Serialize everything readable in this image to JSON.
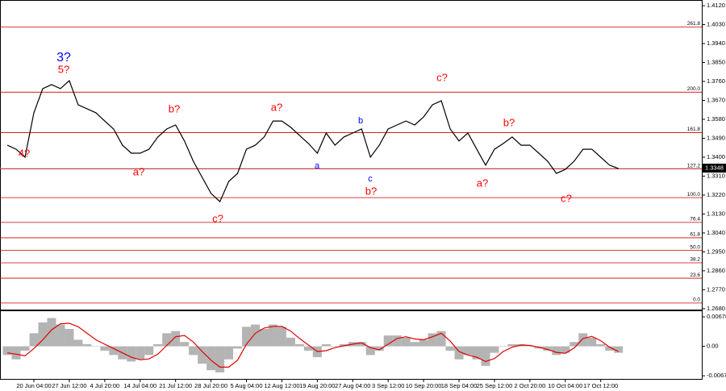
{
  "chart_data": [
    {
      "type": "line",
      "color": "#000000",
      "categories": [
        null,
        null,
        null,
        "20 Jun 04:00",
        null,
        null,
        null,
        "27 Jun 12:00",
        null,
        null,
        null,
        "4 Jul 20:00",
        null,
        null,
        null,
        "14 Jul 04:00",
        null,
        null,
        null,
        "21 Jul 12:00",
        null,
        null,
        null,
        "28 Jul 20:00",
        null,
        null,
        null,
        "5 Aug 04:00",
        null,
        null,
        null,
        "12 Aug 12:00",
        null,
        null,
        null,
        "19 Aug 20:00",
        null,
        null,
        null,
        "27 Aug 04:00",
        null,
        null,
        null,
        "3 Sep 12:00",
        null,
        null,
        null,
        "10 Sep 20:00",
        null,
        null,
        null,
        "18 Sep 04:00",
        null,
        null,
        null,
        "25 Sep 12:00",
        null,
        null,
        null,
        "2 Oct 20:00",
        null,
        null,
        null,
        "10 Oct 04:00",
        null,
        null,
        null,
        "17 Oct 12:00",
        null,
        null
      ],
      "values": [
        1.3457,
        1.3438,
        1.34,
        1.3611,
        1.3726,
        1.3745,
        1.3726,
        1.3764,
        1.3649,
        1.363,
        1.3611,
        1.3572,
        1.3534,
        1.3457,
        1.3419,
        1.3419,
        1.3438,
        1.3496,
        1.3534,
        1.3553,
        1.3477,
        1.3381,
        1.3304,
        1.3228,
        1.3189,
        1.3285,
        1.3323,
        1.3438,
        1.3457,
        1.3496,
        1.3572,
        1.3572,
        1.3542,
        1.3503,
        1.3465,
        1.3419,
        1.3515,
        1.3457,
        1.3496,
        1.3515,
        1.3534,
        1.34,
        1.3457,
        1.3534,
        1.3553,
        1.3572,
        1.3553,
        1.3591,
        1.3649,
        1.3668,
        1.3534,
        1.3477,
        1.3515,
        1.3438,
        1.3362,
        1.3438,
        1.3465,
        1.3496,
        1.3457,
        1.3457,
        1.3419,
        1.3381,
        1.3323,
        1.3342,
        1.3381,
        1.3438,
        1.3438,
        1.34,
        1.3362,
        1.3346
      ],
      "ylim": [
        1.2672,
        1.4147
      ],
      "yticks": [
        {
          "value": 1.412,
          "label": "1.4120"
        },
        {
          "value": 1.403,
          "label": "1.4030"
        },
        {
          "value": 1.394,
          "label": "1.3940"
        },
        {
          "value": 1.385,
          "label": "1.3850"
        },
        {
          "value": 1.376,
          "label": "1.3760"
        },
        {
          "value": 1.367,
          "label": "1.3670"
        },
        {
          "value": 1.358,
          "label": "1.3580"
        },
        {
          "value": 1.349,
          "label": "1.3490"
        },
        {
          "value": 1.34,
          "label": "1.3400"
        },
        {
          "value": 1.331,
          "label": "1.3310"
        },
        {
          "value": 1.322,
          "label": "1.3220"
        },
        {
          "value": 1.313,
          "label": "1.3130"
        },
        {
          "value": 1.304,
          "label": "1.3040"
        },
        {
          "value": 1.295,
          "label": "1.2950"
        },
        {
          "value": 1.286,
          "label": "1.2860"
        },
        {
          "value": 1.277,
          "label": "1.2770"
        },
        {
          "value": 1.268,
          "label": "1.2680"
        }
      ],
      "levels_color": "#cc0000",
      "levels": [
        {
          "value": 1.4019,
          "label": "261.8"
        },
        {
          "value": 1.3709,
          "label": "200.0"
        },
        {
          "value": 1.3517,
          "label": "161.8"
        },
        {
          "value": 1.3344,
          "label": "127.2"
        },
        {
          "value": 1.3208,
          "label": "100.0"
        },
        {
          "value": 1.309,
          "label": "76.4"
        },
        {
          "value": 1.3017,
          "label": "61.8"
        },
        {
          "value": 1.2957,
          "label": "50.0"
        },
        {
          "value": 1.2898,
          "label": "38.2"
        },
        {
          "value": 1.2825,
          "label": "23.6"
        },
        {
          "value": 1.2707,
          "label": "0.0"
        }
      ],
      "current_price": 1.3348,
      "annotations": [
        {
          "text": "3?",
          "color": "#0000ff"
        },
        {
          "text": "5?",
          "color": "#ff0000"
        },
        {
          "text": "4?",
          "color": "#ff0000"
        },
        {
          "text": "a?",
          "color": "#ff0000"
        },
        {
          "text": "b?",
          "color": "#ff0000"
        },
        {
          "text": "c?",
          "color": "#ff0000"
        },
        {
          "text": "a?",
          "color": "#ff0000"
        },
        {
          "text": "a",
          "color": "#0000ff"
        },
        {
          "text": "b",
          "color": "#0000ff"
        },
        {
          "text": "c",
          "color": "#0000ff"
        },
        {
          "text": "b?",
          "color": "#ff0000"
        },
        {
          "text": "c?",
          "color": "#ff0000"
        },
        {
          "text": "a?",
          "color": "#ff0000"
        },
        {
          "text": "b?",
          "color": "#ff0000"
        },
        {
          "text": "c?",
          "color": "#ff0000"
        }
      ]
    },
    {
      "type": "bar",
      "color": "#b4b4b4",
      "values": [
        -0.002,
        -0.003,
        -0.001,
        0.003,
        0.0055,
        0.0065,
        0.005,
        0.004,
        0.0015,
        0.0005,
        0,
        -0.001,
        -0.002,
        -0.003,
        -0.0035,
        -0.003,
        -0.002,
        0.0005,
        0.003,
        0.0035,
        0.001,
        -0.002,
        -0.004,
        -0.0055,
        -0.006,
        -0.003,
        -0.0005,
        0.0045,
        0.005,
        0.004,
        0.005,
        0.0045,
        0.002,
        0.0005,
        -0.001,
        -0.0025,
        0.0005,
        0,
        0.0005,
        0.001,
        0.001,
        -0.002,
        -0.001,
        0.0025,
        0.0025,
        0.002,
        0.001,
        0.0015,
        0.003,
        0.0035,
        -0.001,
        -0.003,
        -0.002,
        -0.003,
        -0.0045,
        -0.0015,
        0,
        0.0005,
        0.0005,
        0,
        -0.0005,
        -0.001,
        -0.002,
        -0.0015,
        0.001,
        0.003,
        0.002,
        0.0005,
        -0.001,
        -0.0015
      ],
      "signal": {
        "color": "#e00000",
        "values": [
          -0.0015,
          -0.0018,
          -0.0022,
          -0.0005,
          0.0015,
          0.0038,
          0.0052,
          0.0053,
          0.0045,
          0.003,
          0.0015,
          0.0005,
          -0.0005,
          -0.0015,
          -0.0025,
          -0.0031,
          -0.0029,
          -0.0018,
          0.0002,
          0.0022,
          0.0025,
          0.001,
          -0.0012,
          -0.0032,
          -0.0048,
          -0.0048,
          -0.0032,
          0.0005,
          0.003,
          0.0042,
          0.0046,
          0.0046,
          0.0035,
          0.0018,
          0.0003,
          -0.0012,
          -0.001,
          -0.0003,
          0.0001,
          0.0005,
          0.0008,
          -0.0003,
          -0.0008,
          0.0005,
          0.0018,
          0.0022,
          0.0017,
          0.0015,
          0.0022,
          0.003,
          0.0012,
          -0.0012,
          -0.002,
          -0.0025,
          -0.0035,
          -0.0028,
          -0.0012,
          -0.0002,
          0.0003,
          0.0002,
          -0.0002,
          -0.0007,
          -0.0014,
          -0.0016,
          -0.0004,
          0.0018,
          0.0023,
          0.0013,
          -0.0002,
          -0.0012
        ]
      },
      "ylim": [
        -0.0075,
        0.0079
      ],
      "yticks": [
        0.00678,
        {
          "value": 0,
          "label": "0.00"
        },
        -0.00678
      ]
    }
  ]
}
